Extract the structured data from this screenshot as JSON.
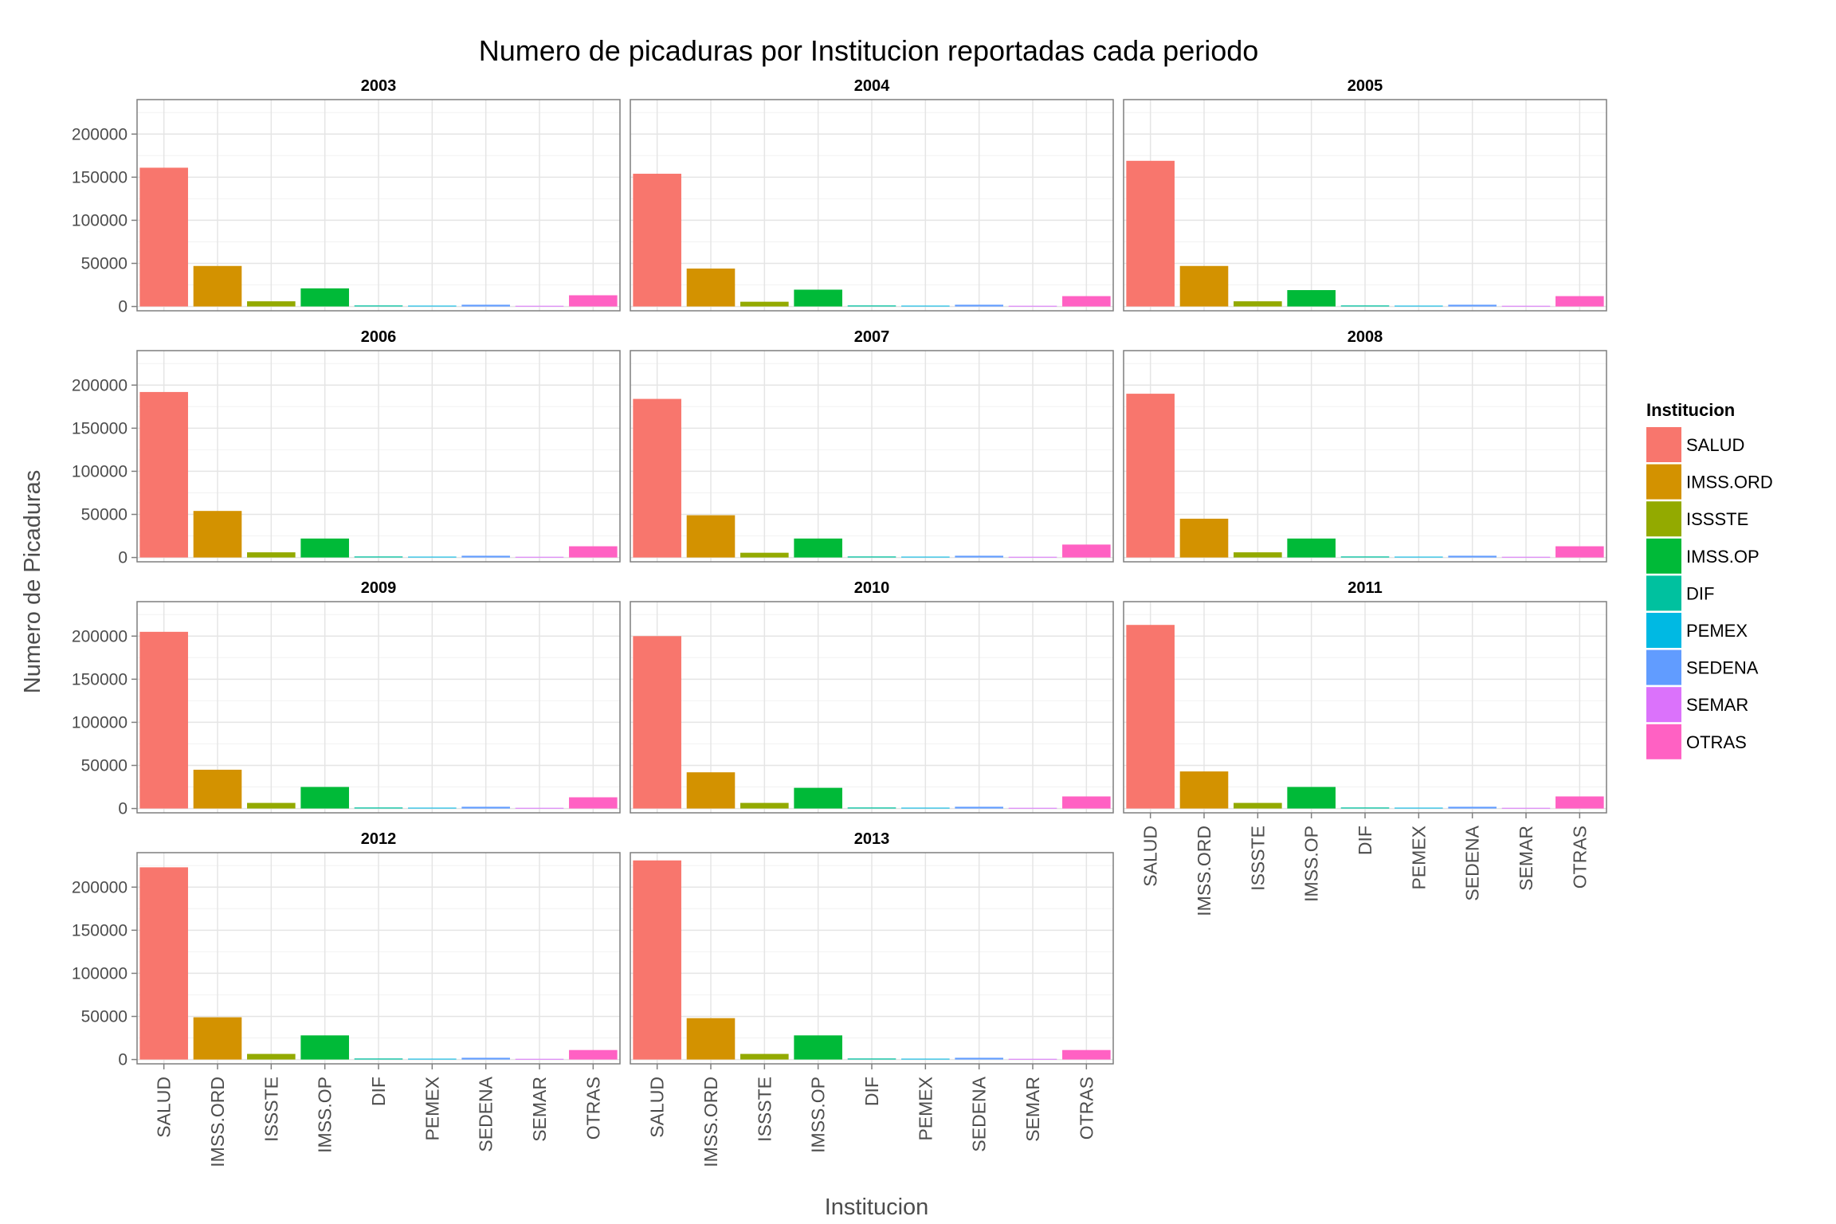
{
  "chart_data": {
    "type": "bar",
    "title": "Numero de picaduras por Institucion reportadas cada periodo",
    "xlabel": "Institucion",
    "ylabel": "Numero de Picaduras",
    "ylim": [
      -5000,
      240000
    ],
    "yticks": [
      0,
      50000,
      100000,
      150000,
      200000
    ],
    "ytick_labels": [
      "0",
      "50000",
      "100000",
      "150000",
      "200000"
    ],
    "grid": true,
    "categories": [
      "SALUD",
      "IMSS.ORD",
      "ISSSTE",
      "IMSS.OP",
      "DIF",
      "PEMEX",
      "SEDENA",
      "SEMAR",
      "OTRAS"
    ],
    "colors": [
      "#F8766D",
      "#D39200",
      "#93AA00",
      "#00BA38",
      "#00C19F",
      "#00B9E3",
      "#619CFF",
      "#DB72FB",
      "#FF61C3"
    ],
    "legend": {
      "title": "Institucion",
      "position": "right"
    },
    "panels": [
      {
        "label": "2003",
        "values": [
          161000,
          47000,
          6000,
          21000,
          1200,
          1000,
          2000,
          800,
          13000
        ]
      },
      {
        "label": "2004",
        "values": [
          154000,
          44000,
          5500,
          19500,
          1200,
          1000,
          2000,
          800,
          12000
        ]
      },
      {
        "label": "2005",
        "values": [
          169000,
          47000,
          6000,
          19000,
          1200,
          1000,
          2000,
          800,
          12000
        ]
      },
      {
        "label": "2006",
        "values": [
          192000,
          54000,
          6000,
          22000,
          1200,
          1000,
          2000,
          800,
          13000
        ]
      },
      {
        "label": "2007",
        "values": [
          184000,
          49000,
          5500,
          22000,
          1200,
          1000,
          2000,
          800,
          15000
        ]
      },
      {
        "label": "2008",
        "values": [
          190000,
          45000,
          6000,
          22000,
          1200,
          1000,
          2000,
          800,
          13000
        ]
      },
      {
        "label": "2009",
        "values": [
          205000,
          45000,
          6500,
          25000,
          1200,
          1000,
          2000,
          800,
          13000
        ]
      },
      {
        "label": "2010",
        "values": [
          200000,
          42000,
          6500,
          24000,
          1200,
          1000,
          2000,
          800,
          14000
        ]
      },
      {
        "label": "2011",
        "values": [
          213000,
          43000,
          6500,
          25000,
          1200,
          1000,
          2000,
          800,
          14000
        ]
      },
      {
        "label": "2012",
        "values": [
          223000,
          49000,
          6500,
          28000,
          1200,
          1000,
          2000,
          800,
          11000
        ]
      },
      {
        "label": "2013",
        "values": [
          231000,
          48000,
          6500,
          28000,
          1200,
          1000,
          2000,
          800,
          11000
        ]
      }
    ]
  }
}
